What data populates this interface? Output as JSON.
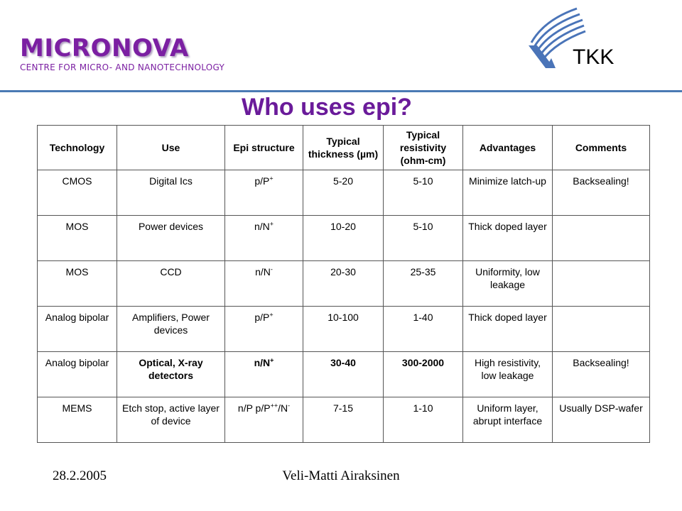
{
  "brand": {
    "name": "MICRONOVA",
    "subtitle": "Centre for Micro- and Nanotechnology"
  },
  "logo": {
    "text": "TKK",
    "icon": "tkk-logo-icon"
  },
  "slide_title": "Who uses epi?",
  "table": {
    "headers": [
      "Technology",
      "Use",
      "Epi structure",
      "Typical thickness (µm)",
      "Typical resistivity (ohm-cm)",
      "Advantages",
      "Comments"
    ],
    "rows": [
      [
        "CMOS",
        "Digital Ics",
        "p/P+",
        "5-20",
        "5-10",
        "Minimize latch-up",
        "Backsealing!"
      ],
      [
        "MOS",
        "Power devices",
        "n/N+",
        "10-20",
        "5-10",
        "Thick doped layer",
        ""
      ],
      [
        "MOS",
        "CCD",
        "n/N-",
        "20-30",
        "25-35",
        "Uniformity, low leakage",
        ""
      ],
      [
        "Analog bipolar",
        "Amplifiers, Power devices",
        "p/P+",
        "10-100",
        "1-40",
        "Thick doped layer",
        ""
      ],
      [
        "Analog bipolar",
        "Optical, X-ray detectors",
        "n/N+",
        "30-40",
        "300-2000",
        "High resistivity, low leakage",
        "Backsealing!"
      ],
      [
        "MEMS",
        "Etch stop, active layer of device",
        "n/P p/P++/N-",
        "7-15",
        "1-10",
        "Uniform layer, abrupt interface",
        "Usually DSP-wafer"
      ]
    ]
  },
  "footer": {
    "date": "28.2.2005",
    "author": "Veli-Matti Airaksinen"
  },
  "colors": {
    "brand": "#7b1fa2",
    "title": "#6a1b9a",
    "rule": "#4a7ab4",
    "logo": "#4a74b8"
  }
}
